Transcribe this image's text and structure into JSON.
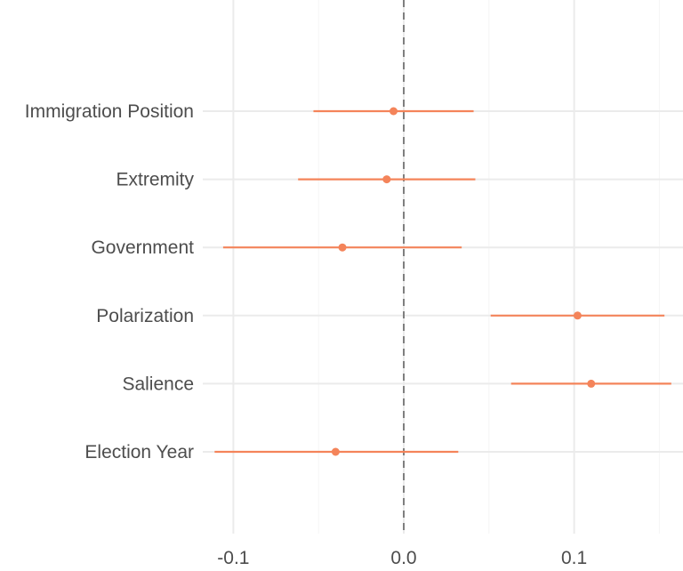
{
  "chart_data": {
    "type": "scatter",
    "title": "",
    "xlabel": "",
    "ylabel": "",
    "xlim": [
      -0.2,
      0.16
    ],
    "x_ticks": [
      -0.1,
      0.0,
      0.1
    ],
    "x_tick_labels": [
      "-0.1",
      "0.0",
      "0.1"
    ],
    "reference_line": {
      "x": 0.0,
      "style": "dashed"
    },
    "grid": true,
    "legend": "none",
    "point_color": "#f4845a",
    "categories": [
      "Immigration Position",
      "Extremity",
      "Government",
      "Polarization",
      "Salience",
      "Election Year"
    ],
    "estimates": [
      -0.006,
      -0.01,
      -0.036,
      0.102,
      0.11,
      -0.04
    ],
    "ci_low": [
      -0.053,
      -0.062,
      -0.106,
      0.051,
      0.063,
      -0.111
    ],
    "ci_high": [
      0.041,
      0.042,
      0.034,
      0.153,
      0.157,
      0.032
    ]
  }
}
